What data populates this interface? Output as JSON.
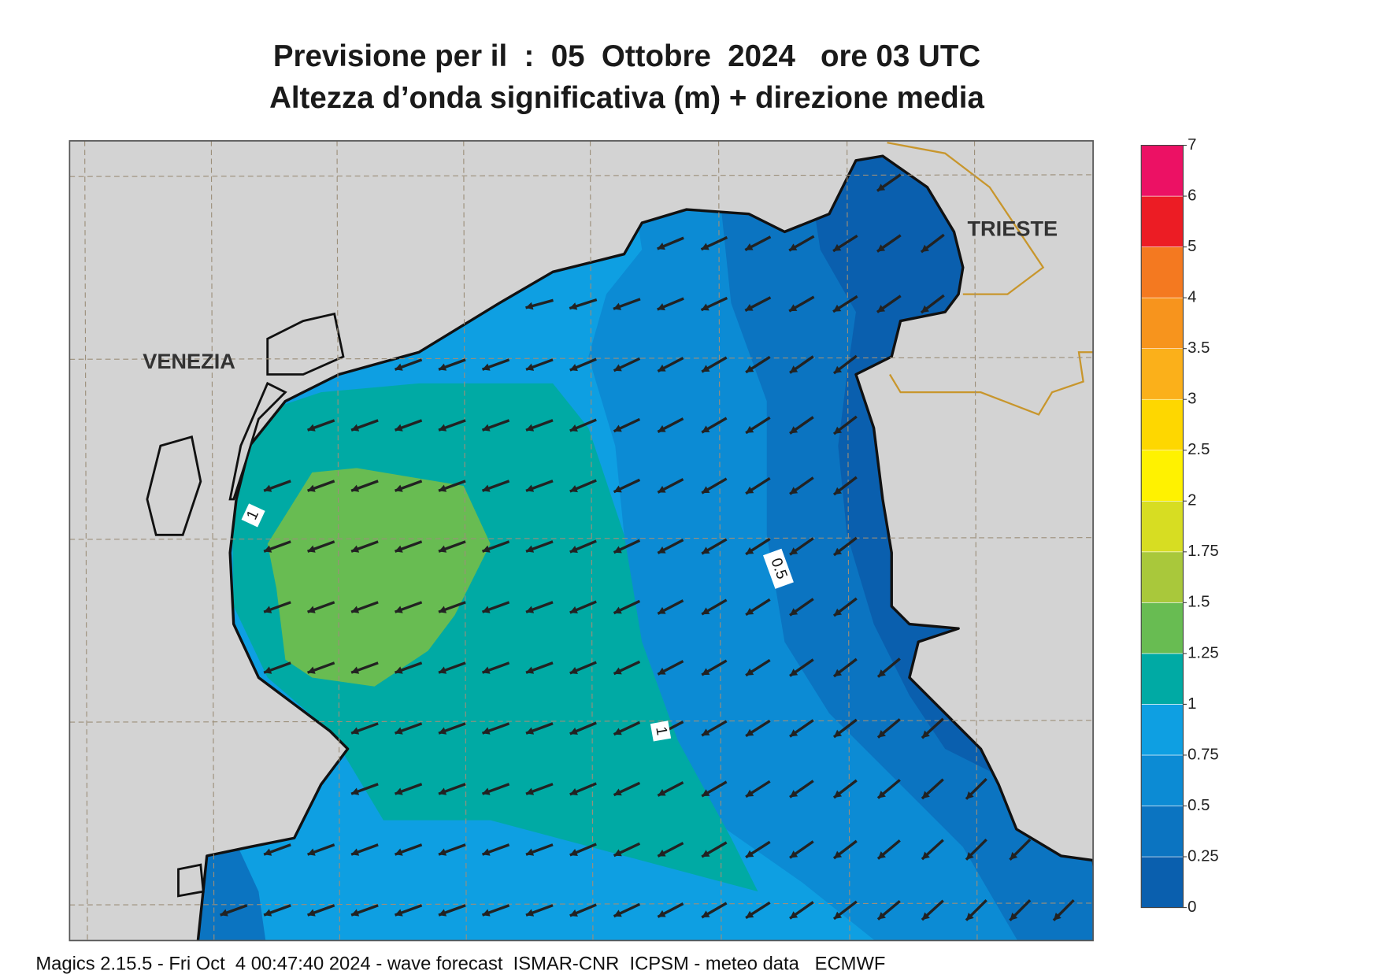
{
  "header": {
    "title": "Previsione per il  :  05  Ottobre  2024   ore 03 UTC",
    "subtitle": "Altezza d’onda significativa (m) + direzione media"
  },
  "map": {
    "places": [
      "VENEZIA",
      "TRIESTE"
    ],
    "contour_labels": [
      1,
      0.5,
      1
    ]
  },
  "legend": {
    "levels": [
      0,
      0.25,
      0.5,
      0.75,
      1,
      1.25,
      1.5,
      1.75,
      2,
      2.5,
      3,
      3.5,
      4,
      5,
      6,
      7
    ],
    "colors": [
      "#0a5fae",
      "#0b74c1",
      "#0c8bd4",
      "#0e9fe2",
      "#00aaa4",
      "#68bc52",
      "#a9c83b",
      "#d7dd22",
      "#fff200",
      "#fed700",
      "#fbb01a",
      "#f7941d",
      "#f47920",
      "#ec1c24",
      "#ec1164"
    ]
  },
  "footer": "Magics 2.15.5 - Fri Oct  4 00:47:40 2024 - wave forecast  ISMAR-CNR  ICPSM - meteo data   ECMWF"
}
